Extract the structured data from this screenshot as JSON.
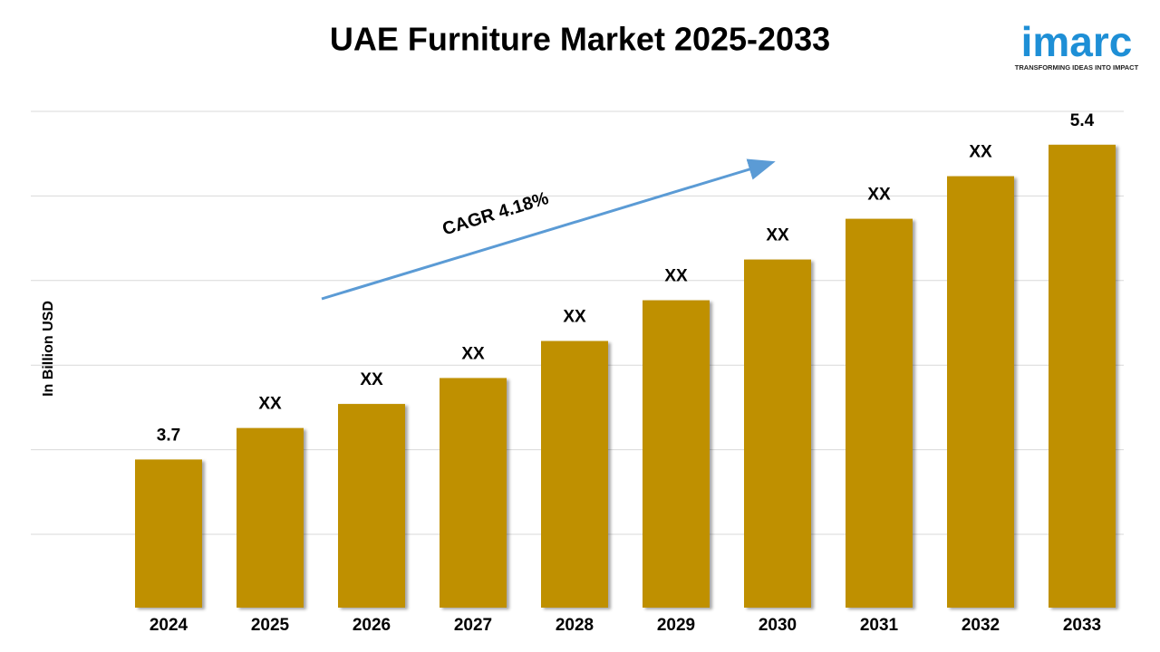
{
  "chart_data": {
    "type": "bar",
    "title": "UAE Furniture Market 2025-2033",
    "y_label": "In Billion USD",
    "annotation": "CAGR 4.18%",
    "logo": {
      "name": "imarc",
      "tagline": "TRANSFORMING IDEAS INTO IMPACT"
    },
    "categories": [
      "2024",
      "2025",
      "2026",
      "2027",
      "2028",
      "2029",
      "2030",
      "2031",
      "2032",
      "2033"
    ],
    "values": [
      3.7,
      3.87,
      4.0,
      4.14,
      4.34,
      4.56,
      4.78,
      5.0,
      5.23,
      5.4
    ],
    "value_labels": [
      "3.7",
      "XX",
      "XX",
      "XX",
      "XX",
      "XX",
      "XX",
      "XX",
      "XX",
      "5.4"
    ],
    "color": "#bf9000",
    "ylim": [
      2.9,
      5.58
    ],
    "grid": true
  }
}
